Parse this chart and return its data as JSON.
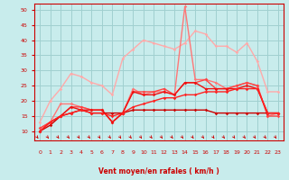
{
  "xlabel": "Vent moyen/en rafales ( km/h )",
  "xlim": [
    -0.5,
    23.5
  ],
  "ylim": [
    7,
    52
  ],
  "yticks": [
    10,
    15,
    20,
    25,
    30,
    35,
    40,
    45,
    50
  ],
  "xticks": [
    0,
    1,
    2,
    3,
    4,
    5,
    6,
    7,
    8,
    9,
    10,
    11,
    12,
    13,
    14,
    15,
    16,
    17,
    18,
    19,
    20,
    21,
    22,
    23
  ],
  "bg_color": "#c8ecec",
  "grid_color": "#a0d0d0",
  "tick_color": "#cc0000",
  "label_color": "#cc0000",
  "series": [
    {
      "color": "#ffaaaa",
      "lw": 1.0,
      "data": [
        13,
        20,
        24,
        29,
        28,
        26,
        25,
        22,
        34,
        37,
        40,
        39,
        38,
        37,
        39,
        43,
        42,
        38,
        38,
        36,
        39,
        33,
        23,
        23
      ]
    },
    {
      "color": "#ff7777",
      "lw": 1.0,
      "data": [
        11,
        13,
        19,
        19,
        18,
        17,
        17,
        13,
        16,
        24,
        22,
        23,
        23,
        22,
        51,
        27,
        27,
        26,
        24,
        25,
        26,
        25,
        15,
        16
      ]
    },
    {
      "color": "#ff4444",
      "lw": 1.0,
      "data": [
        11,
        13,
        15,
        18,
        18,
        17,
        17,
        13,
        16,
        23,
        23,
        23,
        24,
        22,
        26,
        26,
        27,
        24,
        24,
        25,
        26,
        25,
        15,
        15
      ]
    },
    {
      "color": "#ee1111",
      "lw": 1.0,
      "data": [
        10,
        13,
        15,
        18,
        17,
        17,
        17,
        13,
        16,
        23,
        22,
        22,
        23,
        22,
        26,
        26,
        24,
        24,
        24,
        24,
        25,
        24,
        16,
        16
      ]
    },
    {
      "color": "#cc0000",
      "lw": 1.0,
      "data": [
        10,
        12,
        15,
        16,
        17,
        16,
        16,
        16,
        16,
        17,
        17,
        17,
        17,
        17,
        17,
        17,
        17,
        16,
        16,
        16,
        16,
        16,
        16,
        16
      ]
    },
    {
      "color": "#ff2222",
      "lw": 1.0,
      "data": [
        10,
        13,
        15,
        16,
        17,
        16,
        16,
        15,
        16,
        18,
        19,
        20,
        21,
        21,
        22,
        22,
        23,
        23,
        23,
        24,
        24,
        24,
        16,
        16
      ]
    }
  ]
}
